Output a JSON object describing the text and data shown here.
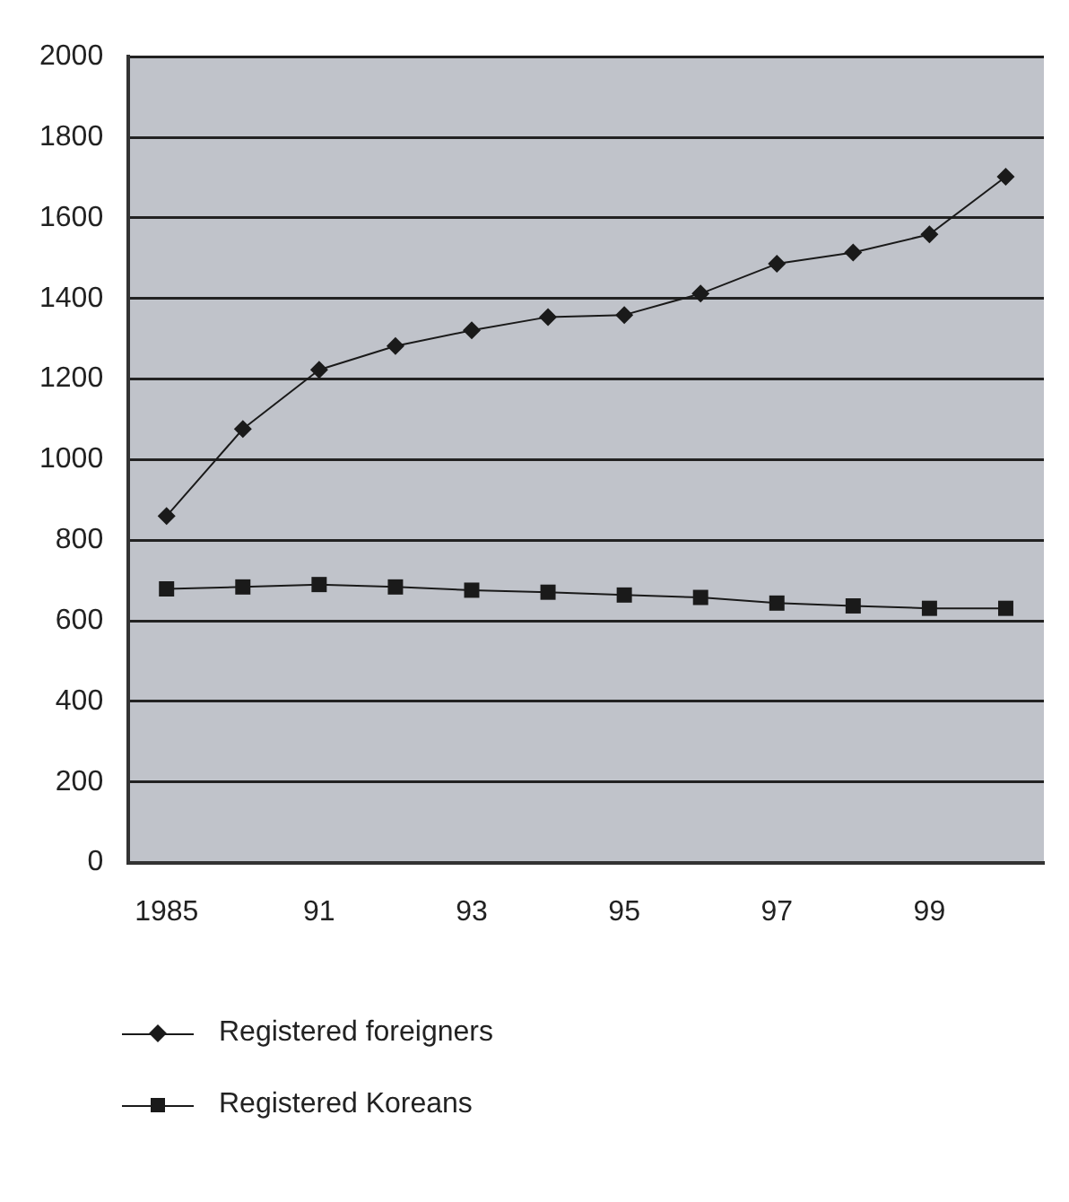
{
  "chart_data": {
    "type": "line",
    "categories": [
      "1985",
      null,
      "91",
      null,
      "93",
      null,
      "95",
      null,
      "97",
      null,
      "99",
      null
    ],
    "series": [
      {
        "name": "Registered foreigners",
        "color": "#1a1a1a",
        "marker": "diamond",
        "values": [
          860,
          1076,
          1223,
          1282,
          1321,
          1354,
          1359,
          1412,
          1486,
          1514,
          1559,
          1702
        ]
      },
      {
        "name": "Registered Koreans",
        "color": "#1a1a1a",
        "marker": "square",
        "values": [
          679,
          684,
          690,
          684,
          676,
          671,
          664,
          658,
          644,
          637,
          631,
          631
        ]
      }
    ],
    "ylim": [
      0,
      2000
    ],
    "yticks": [
      0,
      200,
      400,
      600,
      800,
      1000,
      1200,
      1400,
      1600,
      1800,
      2000
    ],
    "grid": "y",
    "legend": "bottom",
    "line_style": "solid"
  }
}
